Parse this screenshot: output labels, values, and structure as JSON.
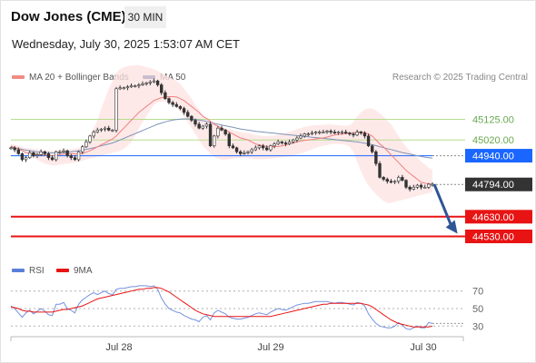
{
  "header": {
    "symbol": "Dow Jones (CME)",
    "timeframe": "30 MIN",
    "datetime": "Wednesday, July 30, 2025 1:53:07 AM CET",
    "copyright": "Research © 2025 Trading Central"
  },
  "chart_data": [
    {
      "type": "candlestick",
      "legend": [
        {
          "name": "MA 20 + Bollinger Bands",
          "color": "#f28b82"
        },
        {
          "name": "MA 50",
          "color": "#2f5597"
        }
      ],
      "x_ticks": [
        "Jul 28",
        "Jul 29",
        "Jul 30"
      ],
      "ylim": [
        44440,
        45270
      ],
      "levels": [
        {
          "value": 45125.0,
          "label": "45125.00",
          "kind": "resistance",
          "color": "#b7dc8e"
        },
        {
          "value": 45020.0,
          "label": "45020.00",
          "kind": "resistance",
          "color": "#b7dc8e"
        },
        {
          "value": 44940.0,
          "label": "44940.00",
          "kind": "pivot",
          "color": "#1a66ff"
        },
        {
          "value": 44794.0,
          "label": "44794.00",
          "kind": "last",
          "color": "#333333"
        },
        {
          "value": 44630.0,
          "label": "44630.00",
          "kind": "support",
          "color": "#e81313"
        },
        {
          "value": 44530.0,
          "label": "44530.00",
          "kind": "support",
          "color": "#e81313"
        }
      ],
      "close": [
        44980,
        44970,
        44950,
        44920,
        44930,
        44955,
        44940,
        44945,
        44960,
        44950,
        44930,
        44920,
        44960,
        44960,
        44965,
        44940,
        44930,
        44920,
        44960,
        44985,
        45010,
        45040,
        45060,
        45070,
        45075,
        45080,
        45070,
        45070,
        45280,
        45285,
        45285,
        45290,
        45295,
        45295,
        45300,
        45305,
        45310,
        45315,
        45320,
        45300,
        45260,
        45230,
        45210,
        45200,
        45190,
        45180,
        45160,
        45140,
        45120,
        45100,
        45080,
        45090,
        45100,
        44990,
        45040,
        45080,
        45070,
        45050,
        44990,
        44980,
        44960,
        44950,
        44955,
        44960,
        44970,
        44980,
        44990,
        44980,
        44970,
        44990,
        45000,
        45010,
        45005,
        45000,
        45010,
        45020,
        45030,
        45040,
        45050,
        45050,
        45055,
        45060,
        45060,
        45060,
        45065,
        45060,
        45055,
        45060,
        45060,
        45055,
        45050,
        45045,
        45060,
        45055,
        45040,
        44990,
        44960,
        44900,
        44830,
        44820,
        44810,
        44805,
        44810,
        44830,
        44815,
        44780,
        44770,
        44780,
        44790,
        44780,
        44780,
        44795,
        44795
      ],
      "ma20": [
        44990,
        44980,
        44975,
        44965,
        44955,
        44950,
        44948,
        44946,
        44945,
        44944,
        44942,
        44940,
        44942,
        44945,
        44948,
        44950,
        44950,
        44949,
        44950,
        44952,
        44958,
        44965,
        44975,
        44985,
        44995,
        45005,
        45015,
        45025,
        45040,
        45060,
        45080,
        45100,
        45120,
        45140,
        45160,
        45175,
        45190,
        45205,
        45220,
        45228,
        45235,
        45238,
        45240,
        45240,
        45238,
        45230,
        45220,
        45205,
        45190,
        45175,
        45160,
        45140,
        45130,
        45115,
        45100,
        45090,
        45080,
        45070,
        45060,
        45050,
        45040,
        45030,
        45025,
        45020,
        45010,
        45000,
        44995,
        44990,
        44988,
        44987,
        44986,
        44987,
        44990,
        44995,
        45000,
        45005,
        45010,
        45015,
        45018,
        45020,
        45022,
        45025,
        45028,
        45030,
        45035,
        45040,
        45045,
        45048,
        45050,
        45052,
        45055,
        45057,
        45060,
        45060,
        45058,
        45050,
        45040,
        45020,
        45000,
        44985,
        44965,
        44945,
        44925,
        44905,
        44885,
        44865,
        44850,
        44835,
        44820,
        44805,
        44800,
        44797,
        44795
      ],
      "upper_band": [
        45000,
        44995,
        44990,
        44985,
        44980,
        44978,
        44975,
        44972,
        44970,
        44968,
        44966,
        44965,
        44966,
        44968,
        44970,
        44972,
        44974,
        44976,
        44980,
        44990,
        45010,
        45040,
        45080,
        45120,
        45180,
        45230,
        45280,
        45320,
        45360,
        45380,
        45390,
        45395,
        45398,
        45400,
        45400,
        45395,
        45390,
        45385,
        45380,
        45370,
        45360,
        45350,
        45340,
        45330,
        45320,
        45305,
        45280,
        45255,
        45230,
        45200,
        45175,
        45145,
        45130,
        45115,
        45100,
        45090,
        45085,
        45080,
        45075,
        45070,
        45065,
        45060,
        45057,
        45055,
        45050,
        45045,
        45042,
        45040,
        45040,
        45041,
        45042,
        45045,
        45050,
        45056,
        45062,
        45068,
        45074,
        45080,
        45086,
        45090,
        45093,
        45095,
        45096,
        45097,
        45098,
        45098,
        45097,
        45095,
        45093,
        45092,
        45095,
        45110,
        45140,
        45160,
        45175,
        45180,
        45180,
        45170,
        45155,
        45140,
        45120,
        45100,
        45070,
        45040,
        45010,
        44985,
        44965,
        44945,
        44930,
        44910,
        44895,
        44880,
        44865
      ],
      "lower_band": [
        44980,
        44975,
        44970,
        44960,
        44950,
        44940,
        44930,
        44920,
        44910,
        44900,
        44895,
        44890,
        44892,
        44895,
        44898,
        44900,
        44902,
        44905,
        44910,
        44915,
        44920,
        44925,
        44930,
        44935,
        44940,
        44945,
        44950,
        44955,
        44960,
        44965,
        44975,
        44990,
        45010,
        45040,
        45080,
        45110,
        45140,
        45170,
        45200,
        45210,
        45215,
        45215,
        45210,
        45200,
        45185,
        45165,
        45140,
        45110,
        45080,
        45050,
        45020,
        44990,
        44970,
        44950,
        44935,
        44925,
        44920,
        44920,
        44922,
        44925,
        44928,
        44930,
        44930,
        44928,
        44925,
        44923,
        44922,
        44922,
        44924,
        44926,
        44928,
        44930,
        44932,
        44934,
        44936,
        44940,
        44946,
        44952,
        44958,
        44965,
        44972,
        44980,
        44986,
        44990,
        44994,
        44998,
        45000,
        45000,
        44998,
        44995,
        44985,
        44960,
        44910,
        44860,
        44820,
        44790,
        44765,
        44745,
        44725,
        44710,
        44700,
        44700,
        44705,
        44710,
        44715,
        44720,
        44725,
        44730,
        44735,
        44740,
        44745,
        44750,
        44755
      ],
      "ma50": [
        44985,
        44980,
        44976,
        44972,
        44968,
        44965,
        44962,
        44960,
        44958,
        44956,
        44955,
        44954,
        44954,
        44955,
        44956,
        44958,
        44960,
        44962,
        44965,
        44968,
        44972,
        44976,
        44980,
        44985,
        44990,
        44995,
        45000,
        45005,
        45012,
        45020,
        45028,
        45036,
        45044,
        45052,
        45060,
        45068,
        45076,
        45084,
        45092,
        45100,
        45106,
        45112,
        45117,
        45121,
        45124,
        45126,
        45127,
        45127,
        45126,
        45124,
        45121,
        45118,
        45114,
        45110,
        45105,
        45100,
        45096,
        45092,
        45088,
        45084,
        45080,
        45076,
        45073,
        45070,
        45067,
        45064,
        45062,
        45060,
        45058,
        45056,
        45054,
        45052,
        45050,
        45048,
        45046,
        45044,
        45042,
        45040,
        45038,
        45036,
        45034,
        45032,
        45030,
        45028,
        45026,
        45024,
        45022,
        45020,
        45018,
        45016,
        45014,
        45012,
        45010,
        45007,
        45004,
        45000,
        44996,
        44991,
        44986,
        44981,
        44976,
        44971,
        44966,
        44961,
        44956,
        44952,
        44948,
        44944,
        44940,
        44936,
        44933,
        44930,
        44928
      ]
    },
    {
      "type": "line",
      "legend": [
        {
          "name": "RSI",
          "color": "#5b7fd9"
        },
        {
          "name": "9MA",
          "color": "#e81313"
        }
      ],
      "ylim": [
        22,
        78
      ],
      "ticks": [
        {
          "value": 70,
          "label": "70"
        },
        {
          "value": 50,
          "label": "50"
        },
        {
          "value": 30,
          "label": "30"
        }
      ],
      "series": [
        {
          "name": "RSI",
          "values": [
            53,
            50,
            45,
            40,
            45,
            48,
            44,
            47,
            50,
            47,
            43,
            42,
            55,
            55,
            57,
            50,
            48,
            45,
            55,
            60,
            63,
            66,
            68,
            66,
            68,
            70,
            67,
            66,
            72,
            73,
            73,
            74,
            75,
            75,
            76,
            76,
            76,
            75,
            76,
            72,
            62,
            55,
            50,
            48,
            46,
            45,
            42,
            40,
            38,
            37,
            35,
            40,
            42,
            37,
            45,
            48,
            46,
            44,
            40,
            39,
            38,
            38,
            39,
            40,
            42,
            44,
            45,
            44,
            43,
            46,
            48,
            50,
            49,
            48,
            50,
            52,
            54,
            55,
            56,
            56,
            57,
            58,
            58,
            58,
            58,
            57,
            56,
            57,
            57,
            56,
            55,
            54,
            57,
            56,
            53,
            44,
            38,
            33,
            30,
            29,
            28,
            28,
            30,
            34,
            31,
            27,
            26,
            28,
            30,
            28,
            28,
            34,
            33
          ]
        },
        {
          "name": "9MA",
          "values": [
            52,
            51,
            50,
            48,
            47,
            47,
            46,
            46,
            46,
            46,
            46,
            46,
            47,
            48,
            49,
            49,
            50,
            51,
            52,
            53,
            55,
            57,
            59,
            61,
            62,
            63,
            64,
            65,
            66,
            67,
            68,
            69,
            70,
            71,
            72,
            72,
            73,
            73,
            74,
            74,
            73,
            71,
            69,
            66,
            63,
            60,
            57,
            54,
            51,
            48,
            46,
            44,
            43,
            42,
            41,
            41,
            41,
            41,
            41,
            41,
            41,
            41,
            41,
            41,
            41,
            41,
            41,
            41,
            41,
            41,
            42,
            43,
            44,
            45,
            46,
            47,
            48,
            49,
            50,
            51,
            52,
            53,
            54,
            55,
            55,
            56,
            56,
            56,
            56,
            56,
            56,
            56,
            56,
            56,
            55,
            54,
            52,
            49,
            46,
            43,
            40,
            37,
            35,
            33,
            32,
            31,
            30,
            29,
            29,
            29,
            29,
            29,
            30
          ]
        }
      ]
    }
  ]
}
